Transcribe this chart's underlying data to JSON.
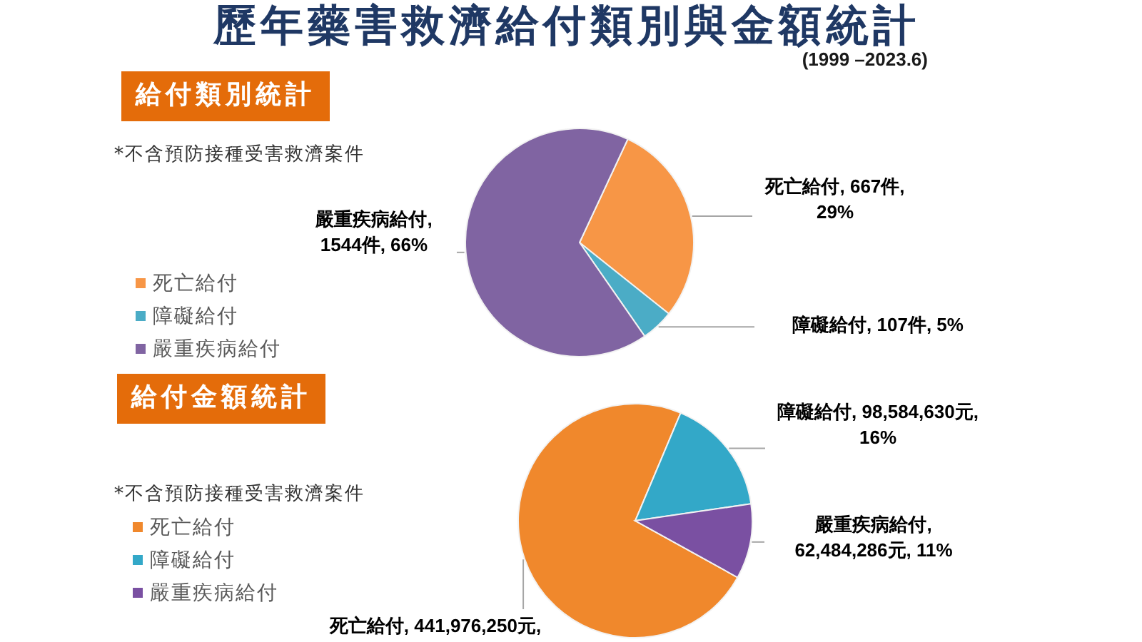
{
  "chart_data": [
    {
      "type": "pie",
      "title": "歷年藥害救濟給付類別與金額統計",
      "subtitle": "(1999 –2023.6)",
      "annotations": [
        "給付類別統計",
        "*不含預防接種受害救濟案件"
      ],
      "categories": [
        "死亡給付",
        "障礙給付",
        "嚴重疾病給付"
      ],
      "values": [
        667,
        107,
        1544
      ],
      "colors": [
        "#f79646",
        "#4bacc6",
        "#8064a2"
      ],
      "value_labels": [
        "死亡給付, 667件, 29%",
        "障礙給付, 107件, 5%",
        "嚴重疾病給付, 1544件, 66%"
      ],
      "legend": "left"
    },
    {
      "type": "pie",
      "title": "給付金額統計",
      "annotations": [
        "*不含預防接種受害救濟案件"
      ],
      "categories": [
        "死亡給付",
        "障礙給付",
        "嚴重疾病給付"
      ],
      "values": [
        441976250,
        98584630,
        62484286
      ],
      "colors": [
        "#f0882c",
        "#33a8c8",
        "#7a50a2"
      ],
      "value_labels": [
        "死亡給付, 441,976,250元,",
        "障礙給付, 98,584,630元, 16%",
        "嚴重疾病給付, 62,484,286元, 11%"
      ],
      "legend": "left"
    }
  ]
}
